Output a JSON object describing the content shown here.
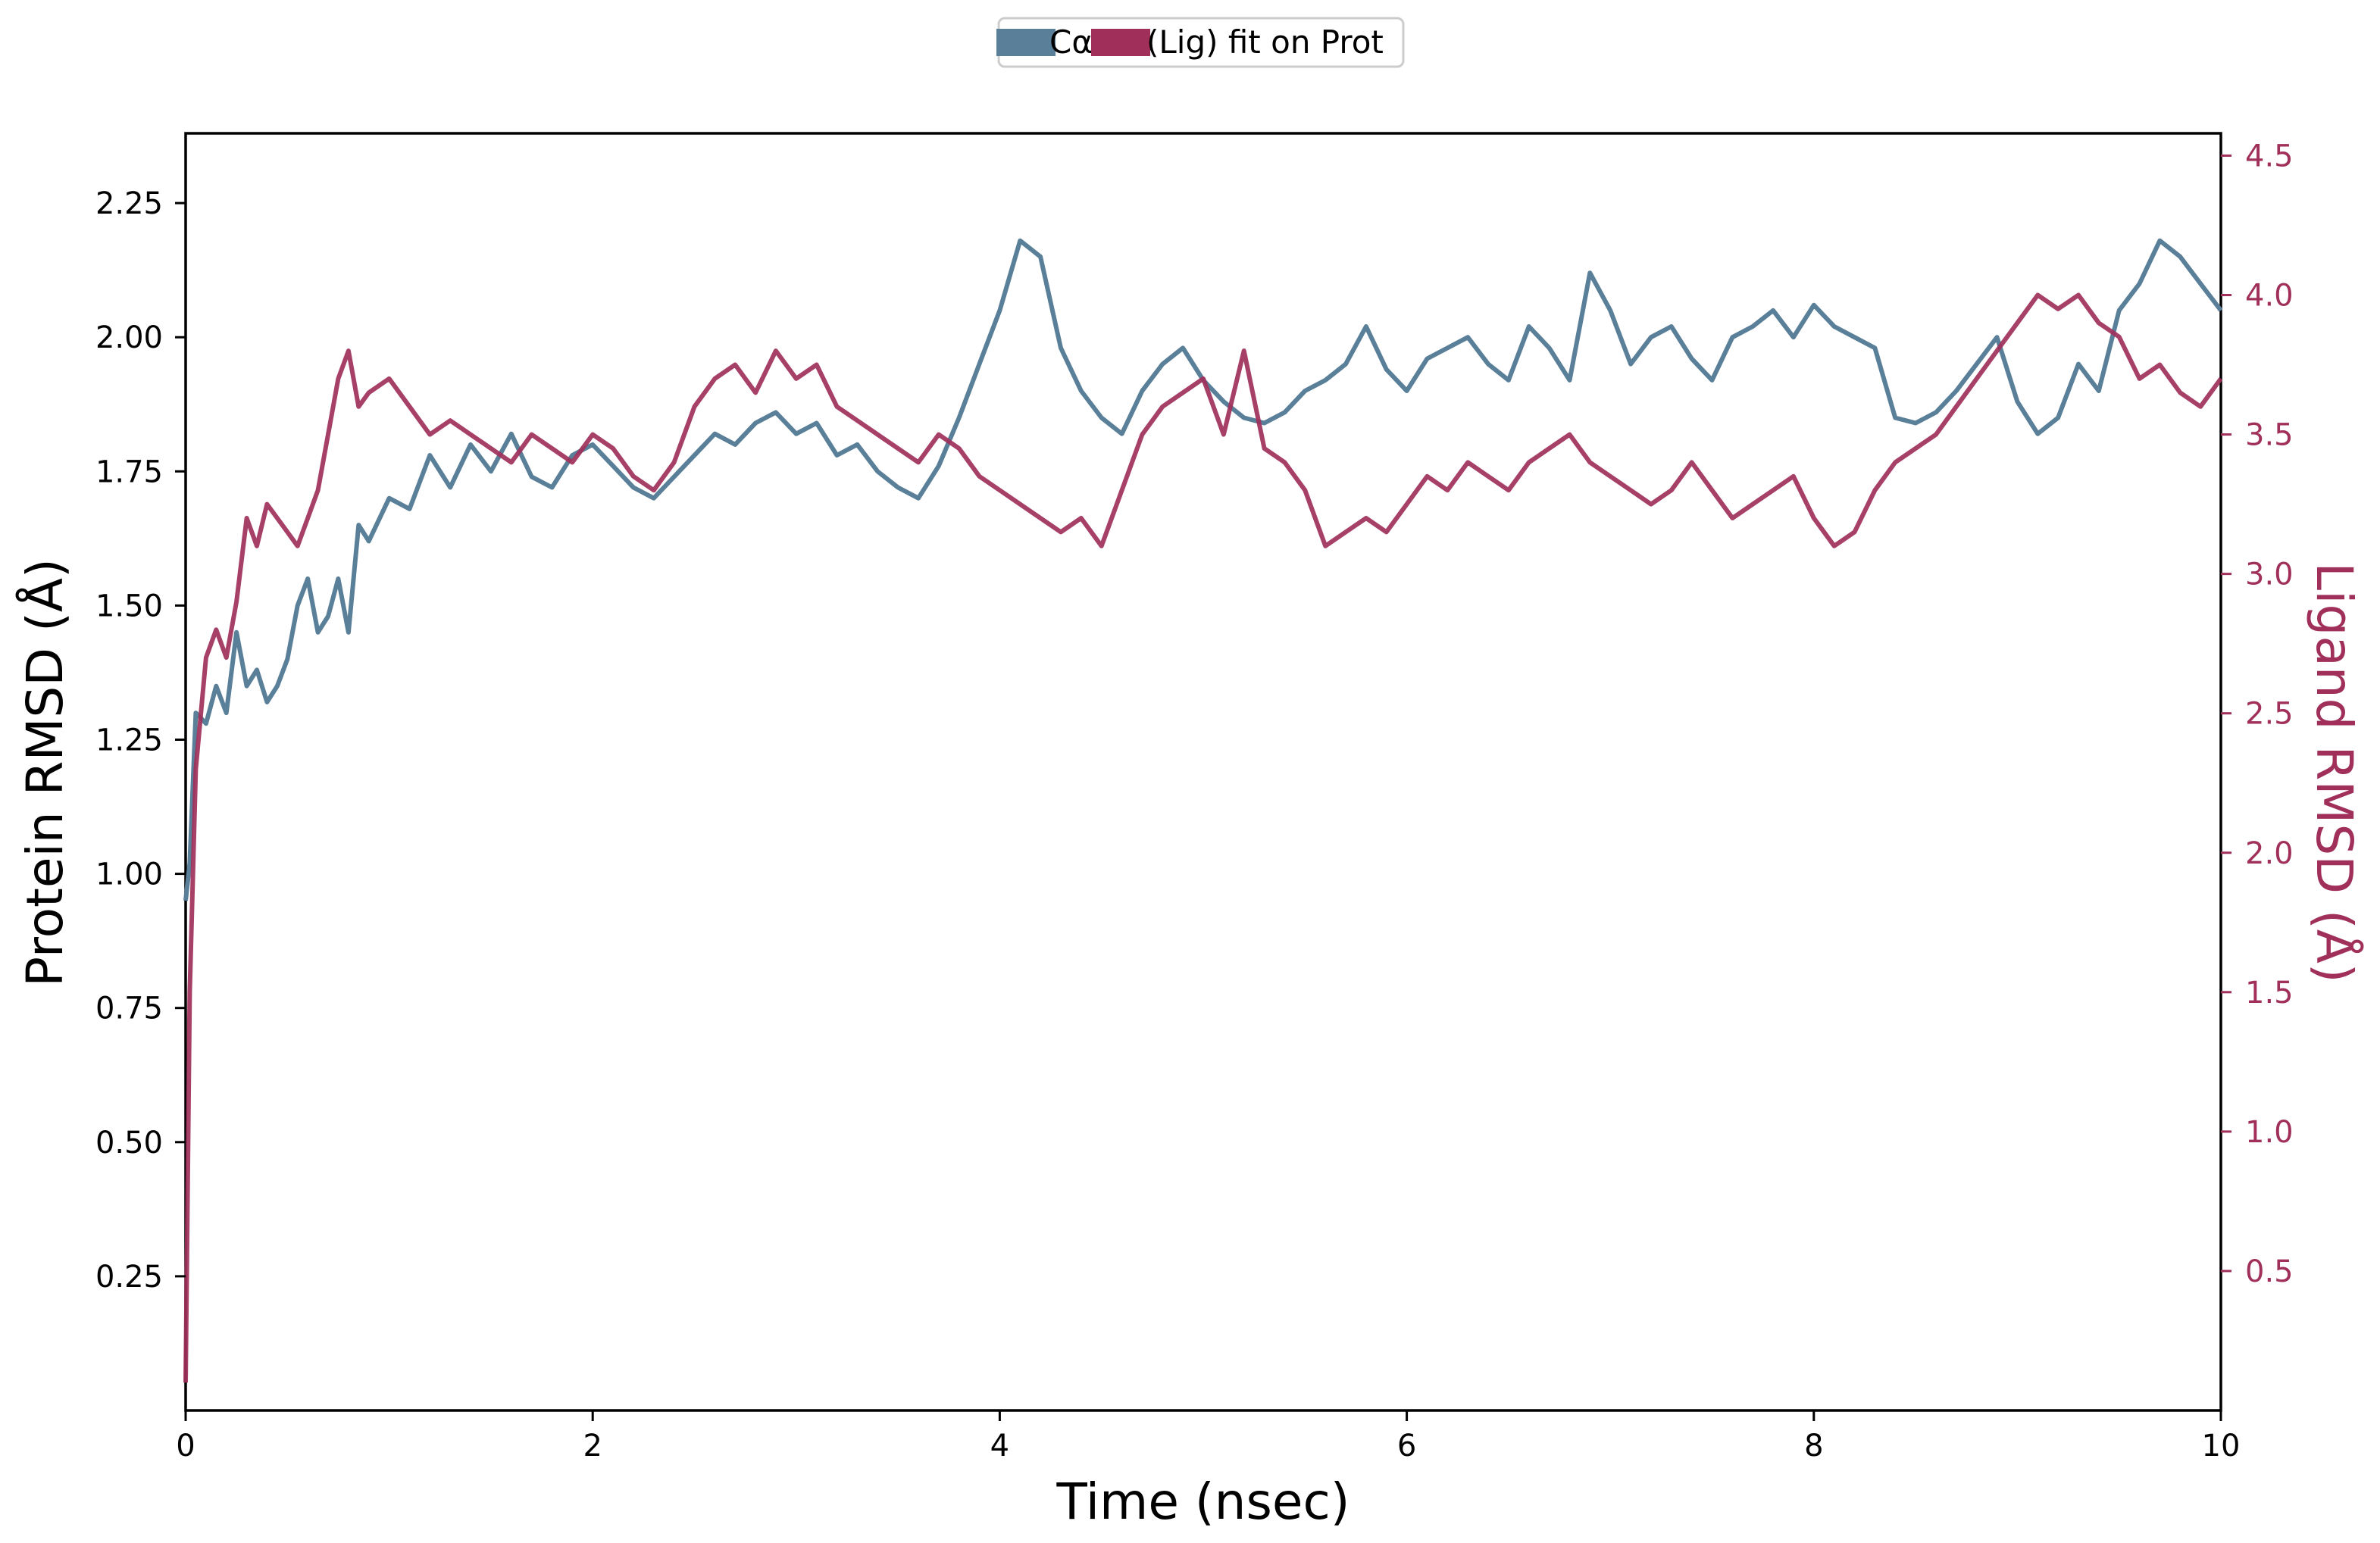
{
  "chart_data": {
    "type": "line",
    "xlabel": "Time (nsec)",
    "ylabel_left": "Protein RMSD (Å)",
    "ylabel_right": "Ligand RMSD (Å)",
    "xlim": [
      0,
      10
    ],
    "ylim_left": [
      0.0,
      2.38
    ],
    "ylim_right": [
      0.0,
      4.58
    ],
    "x_ticks": [
      0,
      2,
      4,
      6,
      8,
      10
    ],
    "y_ticks_left": [
      0.25,
      0.5,
      0.75,
      1.0,
      1.25,
      1.5,
      1.75,
      2.0,
      2.25
    ],
    "y_ticks_right": [
      0.5,
      1.0,
      1.5,
      2.0,
      2.5,
      3.0,
      3.5,
      4.0,
      4.5
    ],
    "y_tick_labels_left": [
      "0.25",
      "0.50",
      "0.75",
      "1.00",
      "1.25",
      "1.50",
      "1.75",
      "2.00",
      "2.25"
    ],
    "y_tick_labels_right": [
      "0.5",
      "1.0",
      "1.5",
      "2.0",
      "2.5",
      "3.0",
      "3.5",
      "4.0",
      "4.5"
    ],
    "grid": false,
    "legend_position": "top-center",
    "colors": {
      "protein": "#5a7f99",
      "ligand": "#a0305a"
    },
    "series": [
      {
        "name": "Cα",
        "axis": "left",
        "color": "#5a7f99",
        "x": [
          0,
          0.02,
          0.05,
          0.1,
          0.15,
          0.2,
          0.25,
          0.3,
          0.35,
          0.4,
          0.45,
          0.5,
          0.55,
          0.6,
          0.65,
          0.7,
          0.75,
          0.8,
          0.85,
          0.9,
          1.0,
          1.1,
          1.2,
          1.3,
          1.4,
          1.5,
          1.6,
          1.7,
          1.8,
          1.9,
          2.0,
          2.1,
          2.2,
          2.3,
          2.4,
          2.5,
          2.6,
          2.7,
          2.8,
          2.9,
          3.0,
          3.1,
          3.2,
          3.3,
          3.4,
          3.5,
          3.6,
          3.7,
          3.8,
          3.9,
          4.0,
          4.1,
          4.2,
          4.3,
          4.4,
          4.5,
          4.6,
          4.7,
          4.8,
          4.9,
          5.0,
          5.1,
          5.2,
          5.3,
          5.4,
          5.5,
          5.6,
          5.7,
          5.8,
          5.9,
          6.0,
          6.1,
          6.2,
          6.3,
          6.4,
          6.5,
          6.6,
          6.7,
          6.8,
          6.9,
          7.0,
          7.1,
          7.2,
          7.3,
          7.4,
          7.5,
          7.6,
          7.7,
          7.8,
          7.9,
          8.0,
          8.1,
          8.2,
          8.3,
          8.4,
          8.5,
          8.6,
          8.7,
          8.8,
          8.9,
          9.0,
          9.1,
          9.2,
          9.3,
          9.4,
          9.5,
          9.6,
          9.7,
          9.8,
          9.9,
          10.0
        ],
        "values": [
          0.95,
          1.02,
          1.3,
          1.28,
          1.35,
          1.3,
          1.45,
          1.35,
          1.38,
          1.32,
          1.35,
          1.4,
          1.5,
          1.55,
          1.45,
          1.48,
          1.55,
          1.45,
          1.65,
          1.62,
          1.7,
          1.68,
          1.78,
          1.72,
          1.8,
          1.75,
          1.82,
          1.74,
          1.72,
          1.78,
          1.8,
          1.76,
          1.72,
          1.7,
          1.74,
          1.78,
          1.82,
          1.8,
          1.84,
          1.86,
          1.82,
          1.84,
          1.78,
          1.8,
          1.75,
          1.72,
          1.7,
          1.76,
          1.85,
          1.95,
          2.05,
          2.18,
          2.15,
          1.98,
          1.9,
          1.85,
          1.82,
          1.9,
          1.95,
          1.98,
          1.92,
          1.88,
          1.85,
          1.84,
          1.86,
          1.9,
          1.92,
          1.95,
          2.02,
          1.94,
          1.9,
          1.96,
          1.98,
          2.0,
          1.95,
          1.92,
          2.02,
          1.98,
          1.92,
          2.12,
          2.05,
          1.95,
          2.0,
          2.02,
          1.96,
          1.92,
          2.0,
          2.02,
          2.05,
          2.0,
          2.06,
          2.02,
          2.0,
          1.98,
          1.85,
          1.84,
          1.86,
          1.9,
          1.95,
          2.0,
          1.88,
          1.82,
          1.85,
          1.95,
          1.9,
          2.05,
          2.1,
          2.18,
          2.15,
          2.1,
          2.05
        ]
      },
      {
        "name": "(Lig) fit on Prot",
        "axis": "right",
        "color": "#a0305a",
        "x": [
          0,
          0.02,
          0.05,
          0.1,
          0.15,
          0.2,
          0.25,
          0.3,
          0.35,
          0.4,
          0.45,
          0.5,
          0.55,
          0.6,
          0.65,
          0.7,
          0.75,
          0.8,
          0.85,
          0.9,
          1.0,
          1.1,
          1.2,
          1.3,
          1.4,
          1.5,
          1.6,
          1.7,
          1.8,
          1.9,
          2.0,
          2.1,
          2.2,
          2.3,
          2.4,
          2.5,
          2.6,
          2.7,
          2.8,
          2.9,
          3.0,
          3.1,
          3.2,
          3.3,
          3.4,
          3.5,
          3.6,
          3.7,
          3.8,
          3.9,
          4.0,
          4.1,
          4.2,
          4.3,
          4.4,
          4.5,
          4.6,
          4.7,
          4.8,
          4.9,
          5.0,
          5.1,
          5.2,
          5.3,
          5.4,
          5.5,
          5.6,
          5.7,
          5.8,
          5.9,
          6.0,
          6.1,
          6.2,
          6.3,
          6.4,
          6.5,
          6.6,
          6.7,
          6.8,
          6.9,
          7.0,
          7.1,
          7.2,
          7.3,
          7.4,
          7.5,
          7.6,
          7.7,
          7.8,
          7.9,
          8.0,
          8.1,
          8.2,
          8.3,
          8.4,
          8.5,
          8.6,
          8.7,
          8.8,
          8.9,
          9.0,
          9.1,
          9.2,
          9.3,
          9.4,
          9.5,
          9.6,
          9.7,
          9.8,
          9.9,
          10.0
        ],
        "values": [
          0.1,
          1.5,
          2.3,
          2.7,
          2.8,
          2.7,
          2.9,
          3.2,
          3.1,
          3.25,
          3.2,
          3.15,
          3.1,
          3.2,
          3.3,
          3.5,
          3.7,
          3.8,
          3.6,
          3.65,
          3.7,
          3.6,
          3.5,
          3.55,
          3.5,
          3.45,
          3.4,
          3.5,
          3.45,
          3.4,
          3.5,
          3.45,
          3.35,
          3.3,
          3.4,
          3.6,
          3.7,
          3.75,
          3.65,
          3.8,
          3.7,
          3.75,
          3.6,
          3.55,
          3.5,
          3.45,
          3.4,
          3.5,
          3.45,
          3.35,
          3.3,
          3.25,
          3.2,
          3.15,
          3.2,
          3.1,
          3.3,
          3.5,
          3.6,
          3.65,
          3.7,
          3.5,
          3.8,
          3.45,
          3.4,
          3.3,
          3.1,
          3.15,
          3.2,
          3.15,
          3.25,
          3.35,
          3.3,
          3.4,
          3.35,
          3.3,
          3.4,
          3.45,
          3.5,
          3.4,
          3.35,
          3.3,
          3.25,
          3.3,
          3.4,
          3.3,
          3.2,
          3.25,
          3.3,
          3.35,
          3.2,
          3.1,
          3.15,
          3.3,
          3.4,
          3.45,
          3.5,
          3.6,
          3.7,
          3.8,
          3.9,
          4.0,
          3.95,
          4.0,
          3.9,
          3.85,
          3.7,
          3.75,
          3.65,
          3.6,
          3.7
        ]
      }
    ]
  }
}
